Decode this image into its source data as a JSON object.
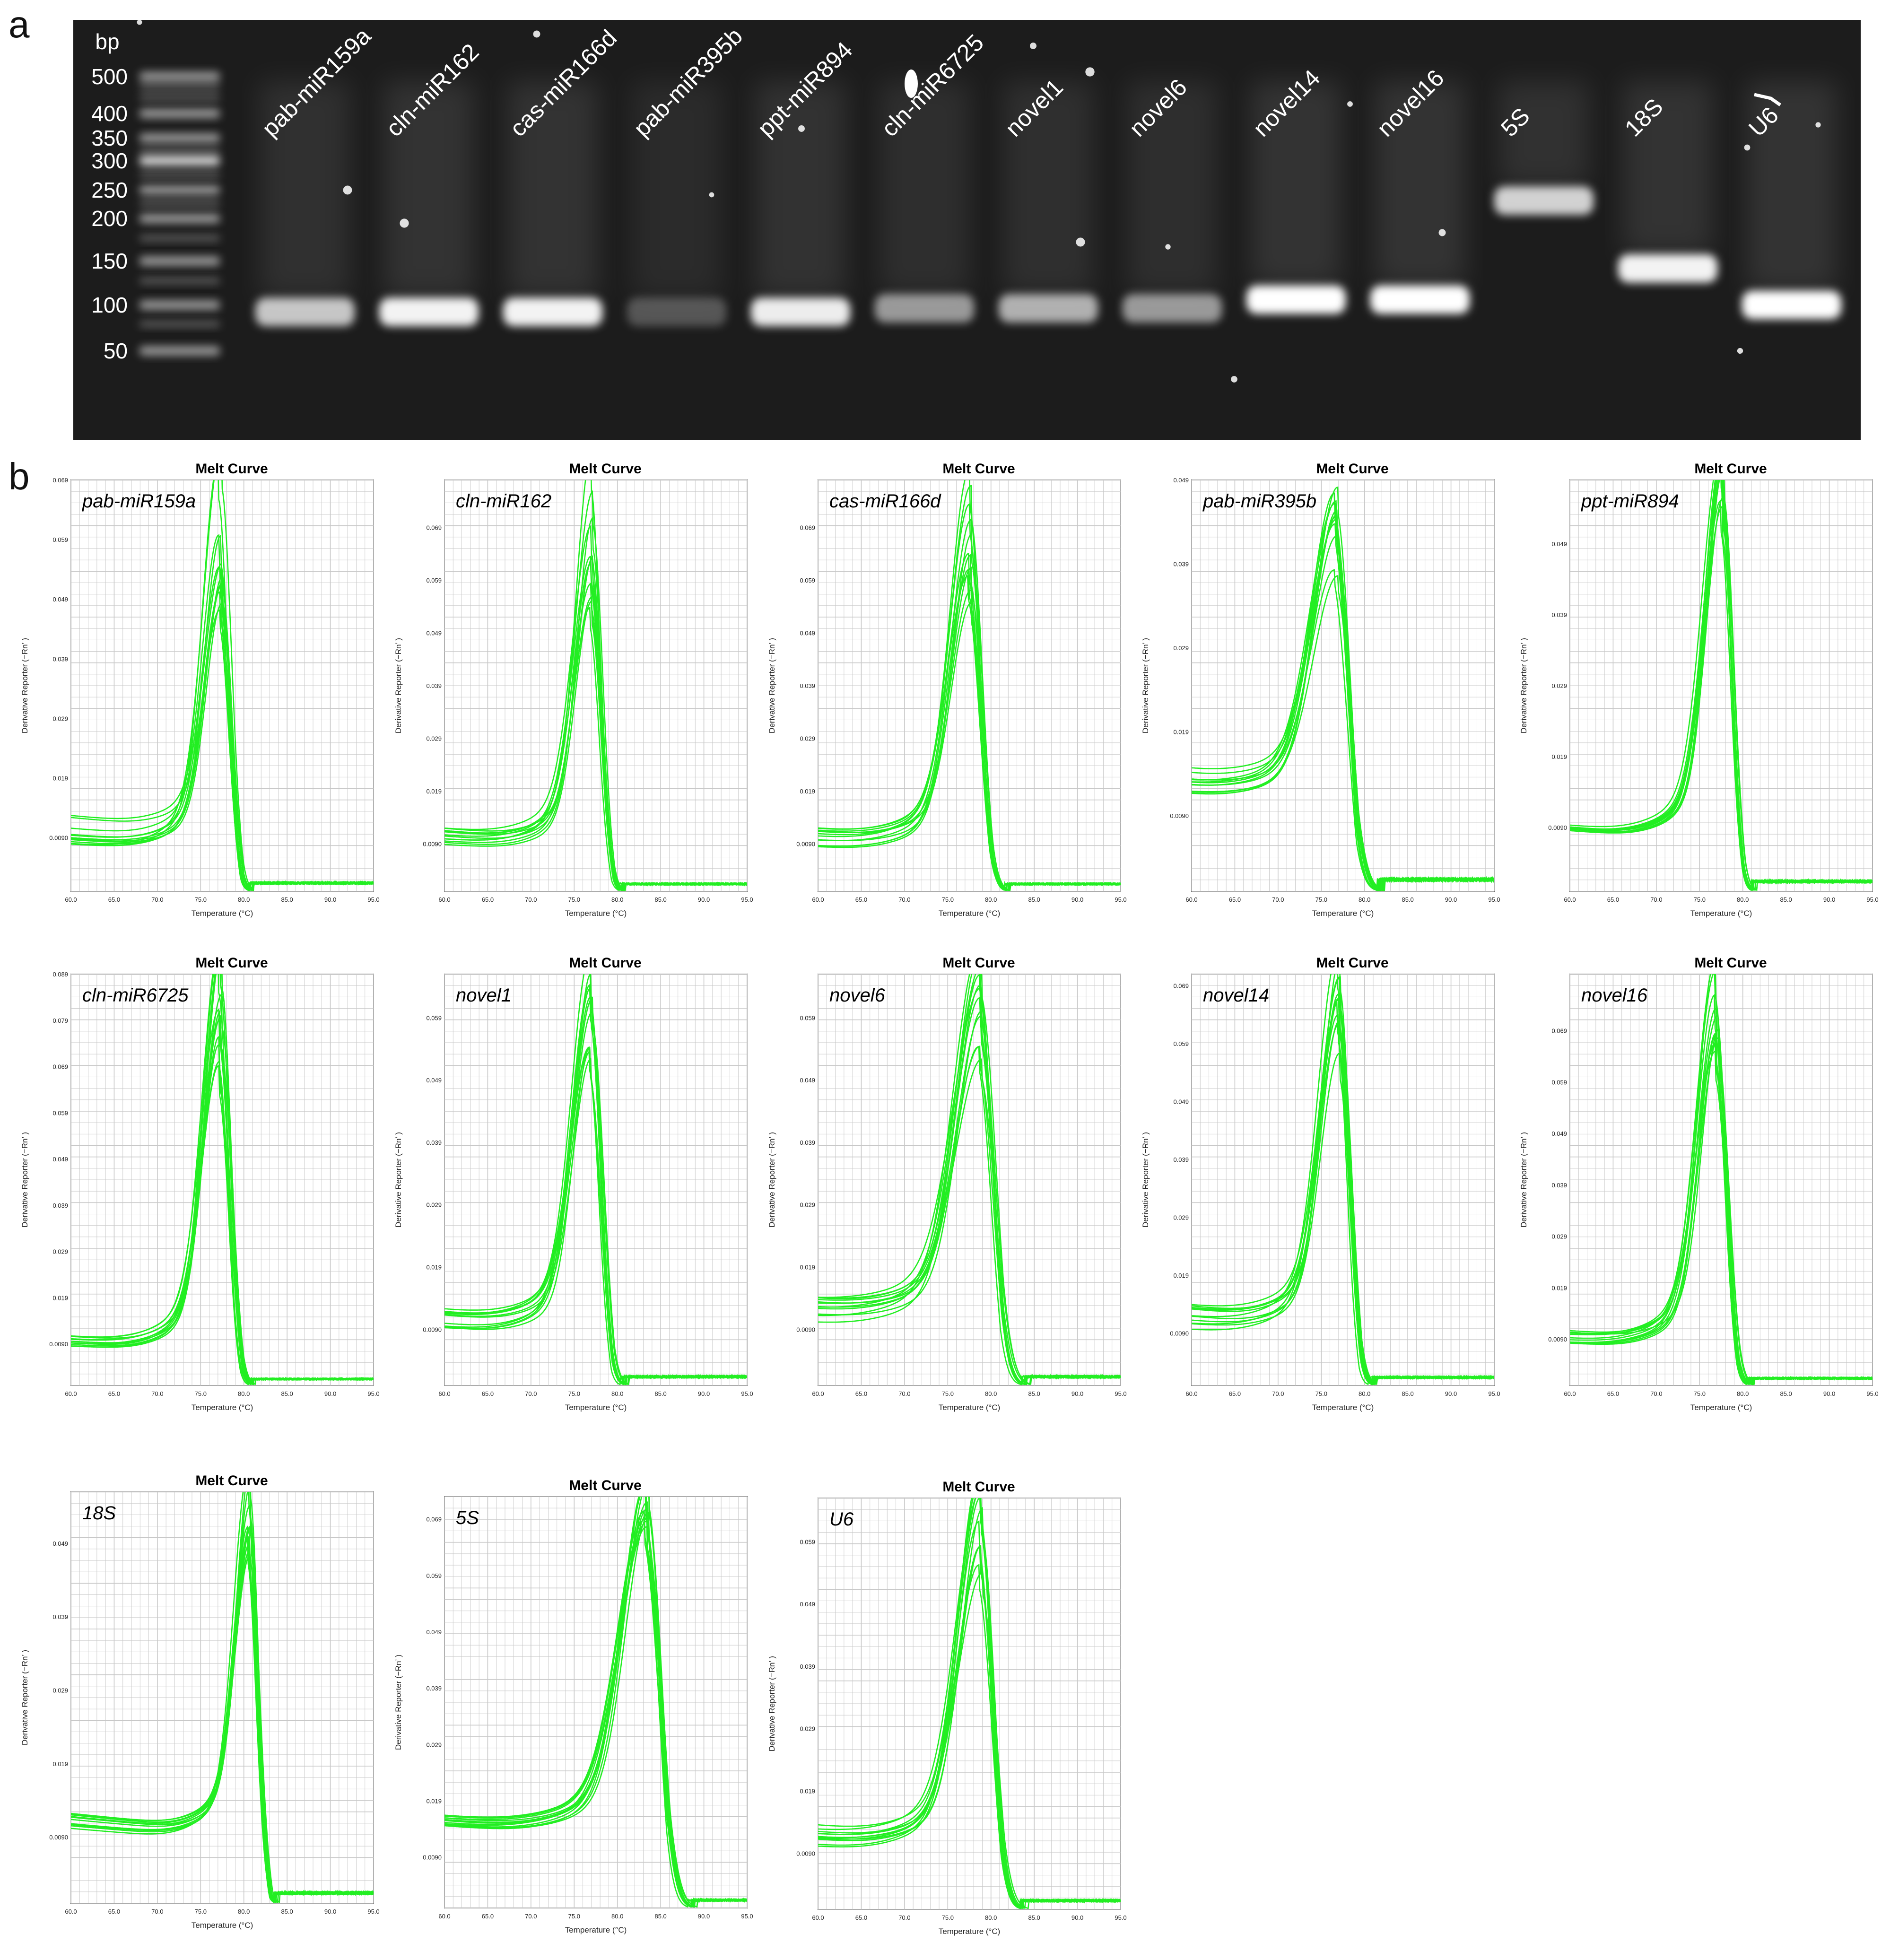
{
  "figure": {
    "panel_a_label": "a",
    "panel_b_label": "b",
    "colors": {
      "gel_background": "#1c1c1c",
      "band": "#ffffff",
      "curve": "#22ee22",
      "grid": "#c8c8c8"
    }
  },
  "gel": {
    "bp_label": "bp",
    "ladder": [
      "500",
      "400",
      "350",
      "300",
      "250",
      "200",
      "150",
      "100",
      "50"
    ],
    "lanes": [
      {
        "label": "pab-miR159a",
        "band_bp": 90,
        "intensity": 0.75
      },
      {
        "label": "cln-miR162",
        "band_bp": 90,
        "intensity": 0.95
      },
      {
        "label": "cas-miR166d",
        "band_bp": 90,
        "intensity": 0.95
      },
      {
        "label": "pab-miR395b",
        "band_bp": 90,
        "intensity": 0.25
      },
      {
        "label": "ppt-miR894",
        "band_bp": 90,
        "intensity": 0.92
      },
      {
        "label": "cln-miR6725",
        "band_bp": 95,
        "intensity": 0.55
      },
      {
        "label": "novel1",
        "band_bp": 95,
        "intensity": 0.65
      },
      {
        "label": "novel6",
        "band_bp": 95,
        "intensity": 0.55
      },
      {
        "label": "novel14",
        "band_bp": 105,
        "intensity": 1.0
      },
      {
        "label": "novel16",
        "band_bp": 105,
        "intensity": 1.0
      },
      {
        "label": "5S",
        "band_bp": 230,
        "intensity": 0.8
      },
      {
        "label": "18S",
        "band_bp": 140,
        "intensity": 0.95
      },
      {
        "label": "U6",
        "band_bp": 100,
        "intensity": 1.0
      }
    ]
  },
  "chart_data": [
    {
      "type": "line",
      "title": "Melt Curve",
      "series_label": "pab-miR159a",
      "xlabel": "Temperature (°C)",
      "ylabel": "Derivative Reporter (−Rn’ )",
      "xlim": [
        60,
        95
      ],
      "ylim": [
        0,
        0.069
      ],
      "xticks": [
        "60.0",
        "65.0",
        "70.0",
        "75.0",
        "80.0",
        "85.0",
        "90.0",
        "95.0"
      ],
      "yticks": [
        "0.0090",
        "0.019",
        "0.029",
        "0.039",
        "0.049",
        "0.059",
        "0.069"
      ],
      "peak_temp": 77.3,
      "peak_width": 1.2,
      "peak_range": [
        0.042,
        0.069
      ],
      "baseline_range": [
        0.0075,
        0.013
      ],
      "n_curves": 12
    },
    {
      "type": "line",
      "title": "Melt Curve",
      "series_label": "cln-miR162",
      "xlabel": "Temperature (°C)",
      "ylabel": "Derivative Reporter (−Rn’ )",
      "xlim": [
        60,
        95
      ],
      "ylim": [
        0,
        0.078
      ],
      "xticks": [
        "60.0",
        "65.0",
        "70.0",
        "75.0",
        "80.0",
        "85.0",
        "90.0",
        "95.0"
      ],
      "yticks": [
        "0.0090",
        "0.019",
        "0.029",
        "0.039",
        "0.049",
        "0.059",
        "0.069"
      ],
      "peak_temp": 77.0,
      "peak_width": 1.2,
      "peak_range": [
        0.05,
        0.077
      ],
      "baseline_range": [
        0.008,
        0.012
      ],
      "n_curves": 12
    },
    {
      "type": "line",
      "title": "Melt Curve",
      "series_label": "cas-miR166d",
      "xlabel": "Temperature (°C)",
      "ylabel": "Derivative Reporter (−Rn’ )",
      "xlim": [
        60,
        95
      ],
      "ylim": [
        0,
        0.078
      ],
      "xticks": [
        "60.0",
        "65.0",
        "70.0",
        "75.0",
        "80.0",
        "85.0",
        "90.0",
        "95.0"
      ],
      "yticks": [
        "0.0090",
        "0.019",
        "0.029",
        "0.039",
        "0.049",
        "0.059",
        "0.069"
      ],
      "peak_temp": 77.6,
      "peak_width": 1.4,
      "peak_range": [
        0.05,
        0.077
      ],
      "baseline_range": [
        0.008,
        0.012
      ],
      "n_curves": 12
    },
    {
      "type": "line",
      "title": "Melt Curve",
      "series_label": "pab-miR395b",
      "xlabel": "Temperature (°C)",
      "ylabel": "Derivative Reporter (−Rn’ )",
      "xlim": [
        60,
        95
      ],
      "ylim": [
        0,
        0.049
      ],
      "xticks": [
        "60.0",
        "65.0",
        "70.0",
        "75.0",
        "80.0",
        "85.0",
        "90.0",
        "95.0"
      ],
      "yticks": [
        "0.0090",
        "0.019",
        "0.029",
        "0.039",
        "0.049"
      ],
      "peak_temp": 76.8,
      "peak_width": 1.7,
      "peak_range": [
        0.033,
        0.048
      ],
      "baseline_range": [
        0.011,
        0.0145
      ],
      "n_curves": 12
    },
    {
      "type": "line",
      "title": "Melt Curve",
      "series_label": "ppt-miR894",
      "xlabel": "Temperature (°C)",
      "ylabel": "Derivative Reporter (−Rn’ )",
      "xlim": [
        60,
        95
      ],
      "ylim": [
        0,
        0.058
      ],
      "xticks": [
        "60.0",
        "65.0",
        "70.0",
        "75.0",
        "80.0",
        "85.0",
        "90.0",
        "95.0"
      ],
      "yticks": [
        "0.0090",
        "0.019",
        "0.029",
        "0.039",
        "0.049"
      ],
      "peak_temp": 77.7,
      "peak_width": 1.2,
      "peak_range": [
        0.049,
        0.058
      ],
      "baseline_range": [
        0.0085,
        0.0095
      ],
      "n_curves": 12
    },
    {
      "type": "line",
      "title": "Melt Curve",
      "series_label": "cln-miR6725",
      "xlabel": "Temperature (°C)",
      "ylabel": "Derivative Reporter (−Rn’ )",
      "xlim": [
        60,
        95
      ],
      "ylim": [
        0,
        0.089
      ],
      "xticks": [
        "60.0",
        "65.0",
        "70.0",
        "75.0",
        "80.0",
        "85.0",
        "90.0",
        "95.0"
      ],
      "yticks": [
        "0.0090",
        "0.019",
        "0.029",
        "0.039",
        "0.049",
        "0.059",
        "0.069",
        "0.079",
        "0.089"
      ],
      "peak_temp": 77.3,
      "peak_width": 1.2,
      "peak_range": [
        0.058,
        0.089
      ],
      "baseline_range": [
        0.008,
        0.011
      ],
      "n_curves": 12
    },
    {
      "type": "line",
      "title": "Melt Curve",
      "series_label": "novel1",
      "xlabel": "Temperature (°C)",
      "ylabel": "Derivative Reporter (−Rn’ )",
      "xlim": [
        60,
        95
      ],
      "ylim": [
        0,
        0.066
      ],
      "xticks": [
        "60.0",
        "65.0",
        "70.0",
        "75.0",
        "80.0",
        "85.0",
        "90.0",
        "95.0"
      ],
      "yticks": [
        "0.0090",
        "0.019",
        "0.029",
        "0.039",
        "0.049",
        "0.059"
      ],
      "peak_temp": 77.0,
      "peak_width": 1.3,
      "peak_range": [
        0.048,
        0.065
      ],
      "baseline_range": [
        0.009,
        0.013
      ],
      "n_curves": 12
    },
    {
      "type": "line",
      "title": "Melt Curve",
      "series_label": "novel6",
      "xlabel": "Temperature (°C)",
      "ylabel": "Derivative Reporter (−Rn’ )",
      "xlim": [
        60,
        95
      ],
      "ylim": [
        0,
        0.066
      ],
      "xticks": [
        "60.0",
        "65.0",
        "70.0",
        "75.0",
        "80.0",
        "85.0",
        "90.0",
        "95.0"
      ],
      "yticks": [
        "0.0090",
        "0.019",
        "0.029",
        "0.039",
        "0.049",
        "0.059"
      ],
      "peak_temp": 78.8,
      "peak_width": 1.8,
      "peak_range": [
        0.048,
        0.065
      ],
      "baseline_range": [
        0.01,
        0.014
      ],
      "n_curves": 12
    },
    {
      "type": "line",
      "title": "Melt Curve",
      "series_label": "novel14",
      "xlabel": "Temperature (°C)",
      "ylabel": "Derivative Reporter (−Rn’ )",
      "xlim": [
        60,
        95
      ],
      "ylim": [
        0,
        0.071
      ],
      "xticks": [
        "60.0",
        "65.0",
        "70.0",
        "75.0",
        "80.0",
        "85.0",
        "90.0",
        "95.0"
      ],
      "yticks": [
        "0.0090",
        "0.019",
        "0.029",
        "0.039",
        "0.049",
        "0.059",
        "0.069"
      ],
      "peak_temp": 77.0,
      "peak_width": 1.3,
      "peak_range": [
        0.052,
        0.071
      ],
      "baseline_range": [
        0.009,
        0.014
      ],
      "n_curves": 12
    },
    {
      "type": "line",
      "title": "Melt Curve",
      "series_label": "novel16",
      "xlabel": "Temperature (°C)",
      "ylabel": "Derivative Reporter (−Rn’ )",
      "xlim": [
        60,
        95
      ],
      "ylim": [
        0,
        0.08
      ],
      "xticks": [
        "60.0",
        "65.0",
        "70.0",
        "75.0",
        "80.0",
        "85.0",
        "90.0",
        "95.0"
      ],
      "yticks": [
        "0.0090",
        "0.019",
        "0.029",
        "0.039",
        "0.049",
        "0.059",
        "0.069"
      ],
      "peak_temp": 77.0,
      "peak_width": 1.3,
      "peak_range": [
        0.059,
        0.079
      ],
      "baseline_range": [
        0.008,
        0.011
      ],
      "n_curves": 12
    },
    {
      "type": "line",
      "title": "Melt Curve",
      "series_label": "18S",
      "xlabel": "Temperature (°C)",
      "ylabel": "Derivative Reporter (−Rn’ )",
      "xlim": [
        60,
        95
      ],
      "ylim": [
        0,
        0.056
      ],
      "xticks": [
        "60.0",
        "65.0",
        "70.0",
        "75.0",
        "80.0",
        "85.0",
        "90.0",
        "95.0"
      ],
      "yticks": [
        "0.0090",
        "0.019",
        "0.029",
        "0.039",
        "0.049"
      ],
      "peak_temp": 80.7,
      "peak_width": 1.0,
      "peak_range": [
        0.043,
        0.056
      ],
      "baseline_range": [
        0.01,
        0.0125
      ],
      "n_curves": 12
    },
    {
      "type": "line",
      "title": "Melt Curve",
      "series_label": "5S",
      "xlabel": "Temperature (°C)",
      "ylabel": "Derivative Reporter (−Rn’ )",
      "xlim": [
        60,
        95
      ],
      "ylim": [
        0,
        0.073
      ],
      "xticks": [
        "60.0",
        "65.0",
        "70.0",
        "75.0",
        "80.0",
        "85.0",
        "90.0",
        "95.0"
      ],
      "yticks": [
        "0.0090",
        "0.019",
        "0.029",
        "0.039",
        "0.049",
        "0.059",
        "0.069"
      ],
      "peak_temp": 83.4,
      "peak_width": 1.8,
      "peak_range": [
        0.063,
        0.072
      ],
      "baseline_range": [
        0.014,
        0.017
      ],
      "n_curves": 12
    },
    {
      "type": "line",
      "title": "Melt Curve",
      "series_label": "U6",
      "xlabel": "Temperature (°C)",
      "ylabel": "Derivative Reporter (−Rn’ )",
      "xlim": [
        60,
        95
      ],
      "ylim": [
        0,
        0.066
      ],
      "xticks": [
        "60.0",
        "65.0",
        "70.0",
        "75.0",
        "80.0",
        "85.0",
        "90.0",
        "95.0"
      ],
      "yticks": [
        "0.0090",
        "0.019",
        "0.029",
        "0.039",
        "0.049",
        "0.059"
      ],
      "peak_temp": 78.9,
      "peak_width": 1.6,
      "peak_range": [
        0.05,
        0.065
      ],
      "baseline_range": [
        0.01,
        0.014
      ],
      "n_curves": 12
    }
  ]
}
